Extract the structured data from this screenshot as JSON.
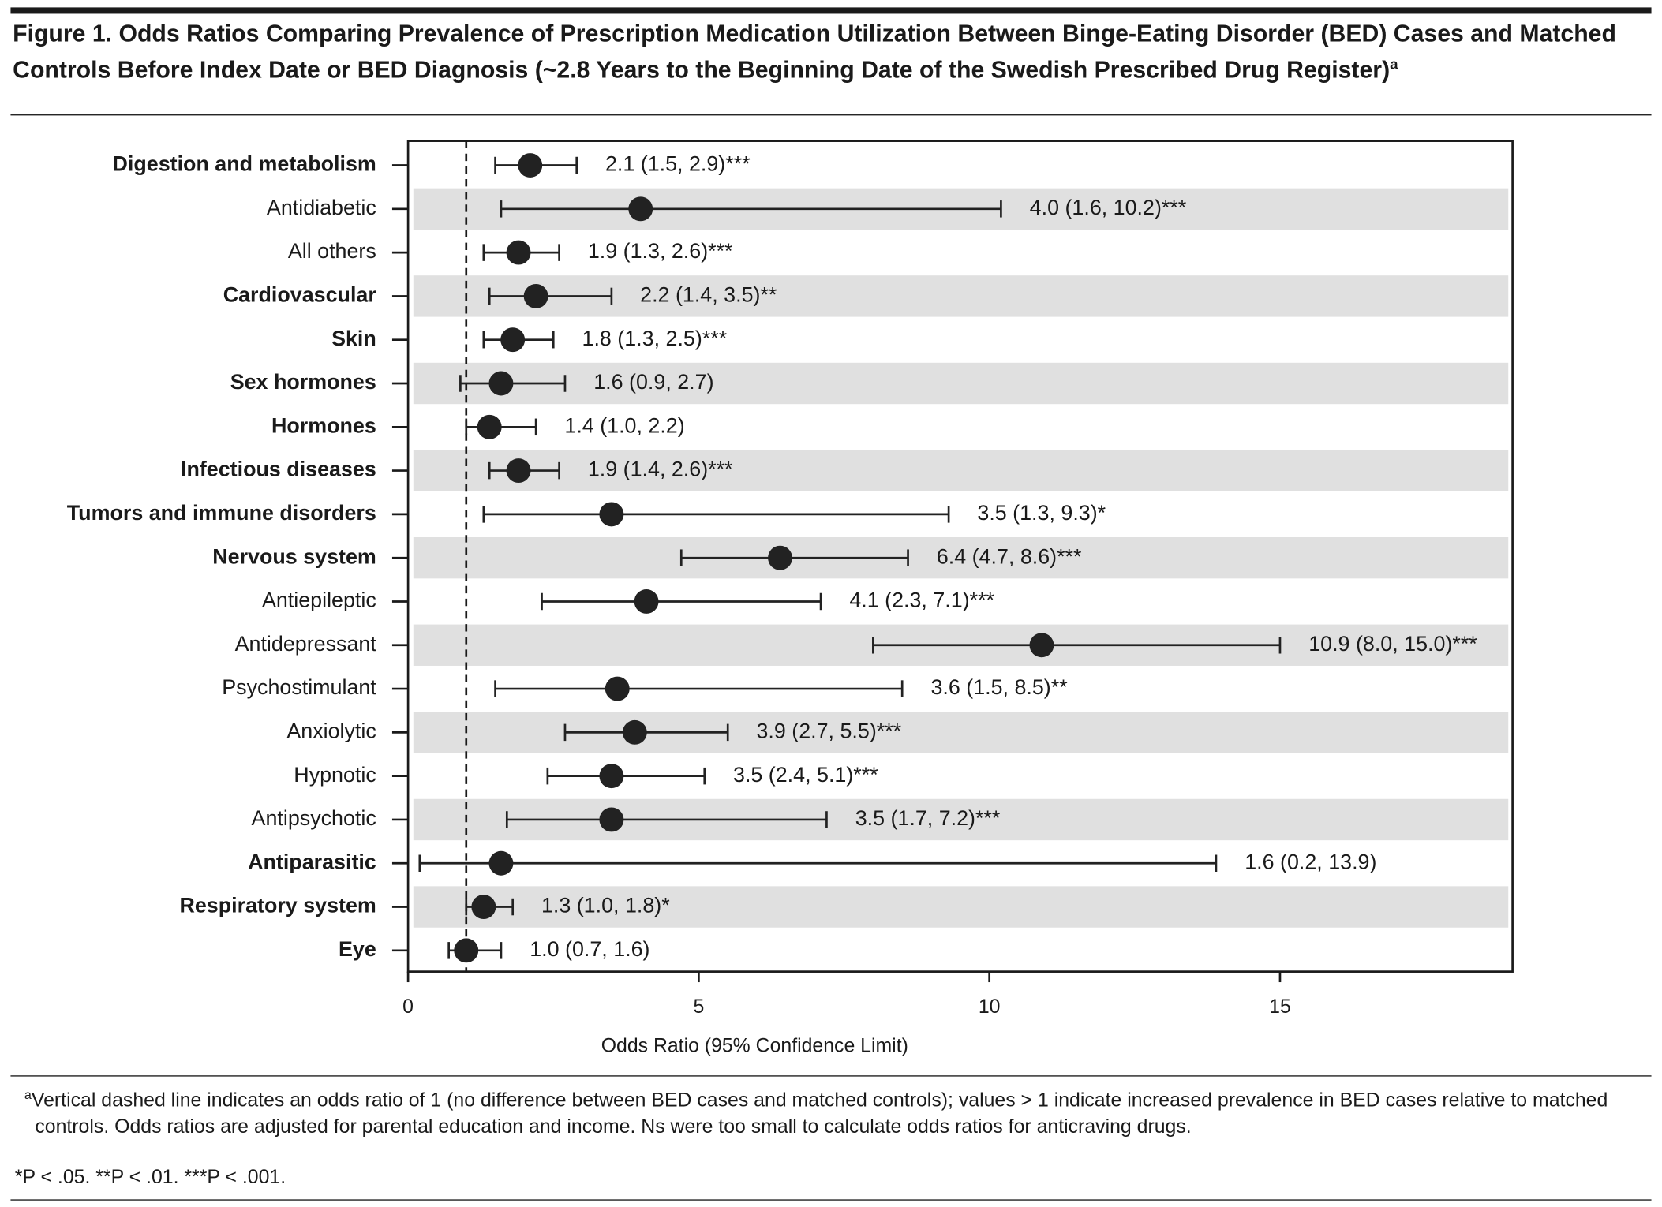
{
  "chart_data": {
    "type": "forest",
    "title": "Figure 1. Odds Ratios Comparing Prevalence of Prescription Medication Utilization Between Binge-Eating Disorder (BED) Cases and Matched Controls Before Index Date or BED Diagnosis (~2.8 Years to the Beginning Date of the Swedish Prescribed Drug Register)",
    "title_note_marker": "a",
    "categories": [
      "Digestion and metabolism",
      "Antidiabetic",
      "All others",
      "Cardiovascular",
      "Skin",
      "Sex hormones",
      "Hormones",
      "Infectious diseases",
      "Tumors and immune disorders",
      "Nervous system",
      "Antiepileptic",
      "Antidepressant",
      "Psychostimulant",
      "Anxiolytic",
      "Hypnotic",
      "Antipsychotic",
      "Antiparasitic",
      "Respiratory system",
      "Eye"
    ],
    "bold": [
      true,
      false,
      false,
      true,
      true,
      true,
      true,
      true,
      true,
      true,
      false,
      false,
      false,
      false,
      false,
      false,
      true,
      true,
      true
    ],
    "values": [
      2.1,
      4.0,
      1.9,
      2.2,
      1.8,
      1.6,
      1.4,
      1.9,
      3.5,
      6.4,
      4.1,
      10.9,
      3.6,
      3.9,
      3.5,
      3.5,
      1.6,
      1.3,
      1.0
    ],
    "ci_low": [
      1.5,
      1.6,
      1.3,
      1.4,
      1.3,
      0.9,
      1.0,
      1.4,
      1.3,
      4.7,
      2.3,
      8.0,
      1.5,
      2.7,
      2.4,
      1.7,
      0.2,
      1.0,
      0.7
    ],
    "ci_high": [
      2.9,
      10.2,
      2.6,
      3.5,
      2.5,
      2.7,
      2.2,
      2.6,
      9.3,
      8.6,
      7.1,
      15.0,
      8.5,
      5.5,
      5.1,
      7.2,
      13.9,
      1.8,
      1.6
    ],
    "value_labels": [
      "2.1 (1.5, 2.9)***",
      "4.0 (1.6, 10.2)***",
      "1.9 (1.3, 2.6)***",
      "2.2 (1.4, 3.5)**",
      "1.8 (1.3, 2.5)***",
      "1.6 (0.9, 2.7)",
      "1.4 (1.0, 2.2)",
      "1.9 (1.4, 2.6)***",
      "3.5 (1.3, 9.3)*",
      "6.4 (4.7, 8.6)***",
      "4.1 (2.3, 7.1)***",
      "10.9 (8.0, 15.0)***",
      "3.6 (1.5, 8.5)**",
      "3.9 (2.7, 5.5)***",
      "3.5 (2.4, 5.1)***",
      "3.5 (1.7, 7.2)***",
      "1.6 (0.2, 13.9)",
      "1.3 (1.0, 1.8)*",
      "1.0 (0.7, 1.6)"
    ],
    "color": "#222222",
    "band_color": "#e0e0e0",
    "reference_line": 1,
    "xlim": [
      0,
      19
    ],
    "xticks": [
      0,
      5,
      10,
      15
    ],
    "xlabel": "Odds Ratio (95% Confidence Limit)",
    "footnote_marker": "a",
    "footnote": "Vertical dashed line indicates an odds ratio of 1 (no difference between BED cases and matched controls); values > 1 indicate increased prevalence in BED cases relative to matched controls. Odds ratios are adjusted for parental education and income. Ns were too small to calculate odds ratios for anticraving drugs.",
    "significance_note": "*P < .05. **P < .01. ***P < .001."
  }
}
